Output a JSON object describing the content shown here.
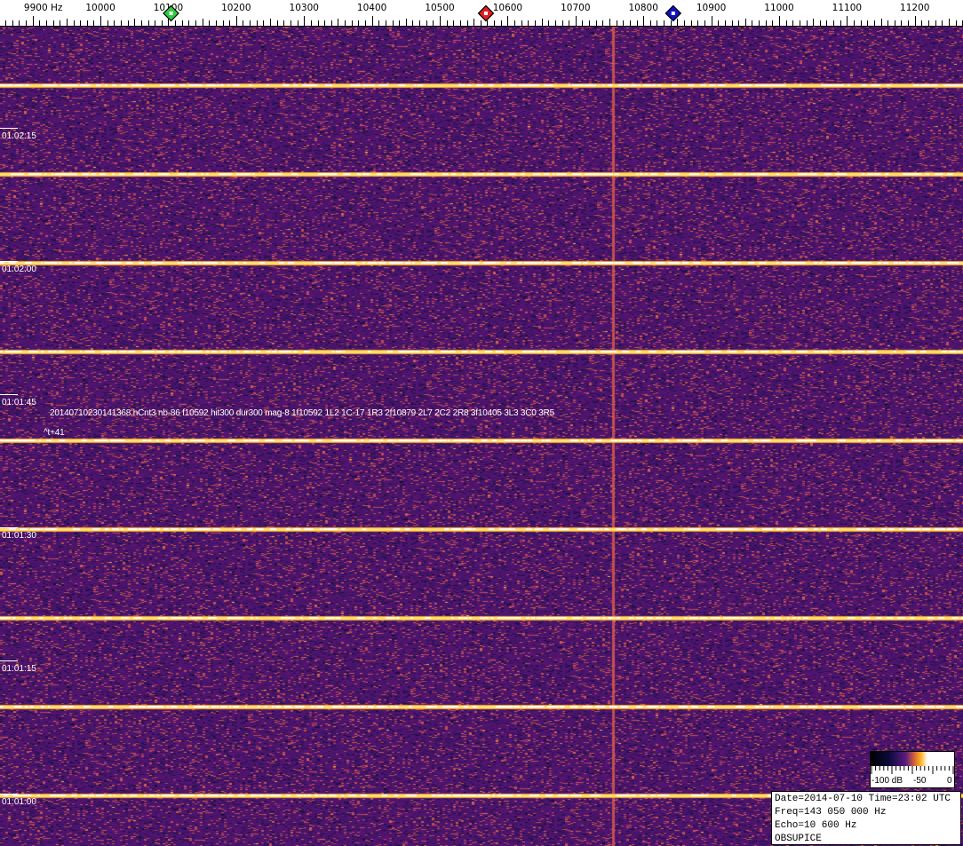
{
  "chart_data": {
    "type": "heatmap",
    "subtype": "waterfall-spectrogram",
    "x_axis": {
      "unit": "Hz",
      "range": [
        9852,
        11271
      ],
      "tick_labels": [
        "9900 Hz",
        "10000",
        "10100",
        "10200",
        "10300",
        "10400",
        "10500",
        "10600",
        "10700",
        "10800",
        "10900",
        "11000",
        "11100",
        "11200"
      ],
      "ticks": [
        9900,
        10000,
        10100,
        10200,
        10300,
        10400,
        10500,
        10600,
        10700,
        10800,
        10900,
        11000,
        11100,
        11200
      ],
      "minor_tick_step": 10
    },
    "y_axis": {
      "direction": "time descending downward",
      "time_labels": [
        "01:02:15",
        "01:02:00",
        "01:01:45",
        "01:01:30",
        "01:01:15",
        "01:01:00"
      ]
    },
    "markers": [
      {
        "freq": 10104,
        "color": "#2ecc40"
      },
      {
        "freq": 10568,
        "color": "#e02020"
      },
      {
        "freq": 10844,
        "color": "#1010c0"
      }
    ],
    "horizontal_bursts_count": 9,
    "vertical_line_freq": 10755,
    "annotation": {
      "text": "20140710230141368 hCnt3 nb-86 f10592 hit300 dur300 mag-8 1f10592 1L2 1C-17 1R3 2f10879 2L7 2C2 2R8 3f10405 3L3 3C0 3R5",
      "marker": "^t+41"
    },
    "colorbar": {
      "labels": [
        "-100 dB",
        "-50",
        "0"
      ],
      "range_db": [
        -100,
        0
      ]
    },
    "colors": {
      "background": "#46196a",
      "burst": "#ffd040"
    }
  },
  "info": {
    "line1": "Date=2014-07-10 Time=23:02 UTC",
    "line2": "Freq=143 050 000 Hz",
    "line3": "Echo=10 600 Hz",
    "line4": "OBSUPICE"
  }
}
